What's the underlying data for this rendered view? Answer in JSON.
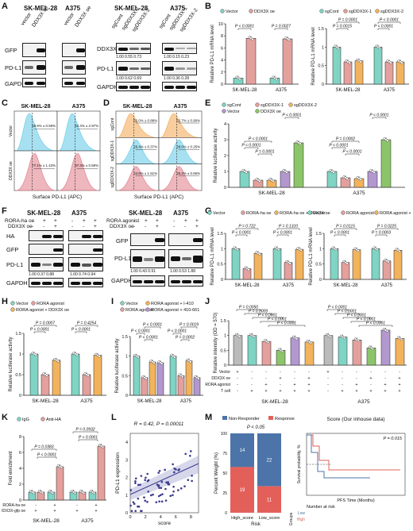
{
  "panels": [
    "A",
    "B",
    "C",
    "D",
    "E",
    "F",
    "G",
    "H",
    "I",
    "J",
    "K",
    "L",
    "M"
  ],
  "A": {
    "cells": [
      "SK-MEL-28",
      "A375"
    ],
    "lanes": [
      "vector",
      "DDX3X oe",
      "vector",
      "DDX3X oe"
    ],
    "right_cells": [
      "SK-MEL-28",
      "A375"
    ],
    "right_lanes": [
      "sgCont",
      "sgDDX3X-1",
      "sgDDX3X-2",
      "sgCont",
      "sgDDX3X-1",
      "sgDDX3X-2"
    ],
    "blots_left": [
      "GFP",
      "PD-L1",
      "GAPDH"
    ],
    "blots_right": [
      "DDX3X",
      "PD-L1",
      "GAPDH"
    ],
    "ddx3x_quant": [
      "1.00",
      "0.55",
      "0.73",
      "1.00",
      "0.15",
      "0.23"
    ],
    "pdl1_quant": [
      "1.00",
      "0.62",
      "0.69",
      "1.00",
      "0.36",
      "0.28"
    ]
  },
  "B": {
    "legend1": [
      "Vector",
      "DDX3X oe"
    ],
    "legend2": [
      "sgCont",
      "sgDDX3X-1",
      "sgDDX3X-2"
    ],
    "ylabel": "Relative PD-L1 mRNA level",
    "p_left": [
      "P < 0.0001",
      "P = 0.0027"
    ],
    "p_right": [
      "P = 0.0015",
      "P = 0.0001",
      "P < 0.0001",
      "P < 0.0001"
    ],
    "groups": [
      "SK-MEL-28",
      "A375"
    ]
  },
  "C": {
    "cells": [
      "SK-MEL-28",
      "A375"
    ],
    "rows": [
      "Vector",
      "DDX3X oe"
    ],
    "pct": [
      "50.6% ± 0.59%",
      "42.4% ± 2.97%",
      "77.1% ± 1.43%",
      "97.3% ± 0.59%"
    ],
    "xlabel": "Surface PD-L1 (APC)"
  },
  "D": {
    "cells": [
      "SK-MEL-28",
      "A375"
    ],
    "rows": [
      "sgCont",
      "sgDDX3X-1",
      "sgDDX3X-2"
    ],
    "pct": [
      "52.0% ± 0.88%",
      "52.7% ± 0.90%",
      "25.4% ± 0.37%",
      "28.0% ± 0.25%",
      "24.6% ± 1.61%",
      "26.2% ± 0.65%"
    ],
    "xlabel": "Surface PD-L1 (APC)"
  },
  "E": {
    "legend": [
      "sgCont",
      "sgDDX3X-1",
      "sgDDX3X-2",
      "Vector",
      "DDX3X oe"
    ],
    "ylabel": "Relative luciferase activity",
    "p": [
      "P < 0.0001",
      "P < 0.0001",
      "P = 0.0001",
      "P < 0.0001",
      "P < 0.0001",
      "P = 0.0002",
      "P < 0.0001",
      "P < 0.0001"
    ],
    "groups": [
      "SK-MEL-28",
      "A375"
    ]
  },
  "F": {
    "cells": [
      "SK-MEL-28",
      "A375"
    ],
    "rows_left": [
      "RORA-ha oe",
      "DDX3X oe"
    ],
    "signs_left": [
      [
        "-",
        "+",
        "+",
        "-",
        "+",
        "+"
      ],
      [
        "-",
        "-",
        "+",
        "-",
        "-",
        "+"
      ]
    ],
    "blots_left": [
      "HA",
      "GFP",
      "PD-L1",
      "GAPDH"
    ],
    "quant_left": [
      "1.00",
      "0.37",
      "0.88",
      "1.00",
      "0.74",
      "0.94"
    ],
    "rows_right": [
      "RORA agonist",
      "DDX3X oe"
    ],
    "signs_right": [
      [
        "-",
        "+",
        "+",
        "-",
        "+",
        "+"
      ],
      [
        "-",
        "-",
        "+",
        "-",
        "-",
        "+"
      ]
    ],
    "blots_right": [
      "GFP",
      "PD-L1",
      "GAPDH"
    ],
    "quant_right": [
      "1.00",
      "0.43",
      "0.91",
      "1.00",
      "0.53",
      "1.88"
    ]
  },
  "G": {
    "legend": [
      "Vector",
      "RORA-ha oe",
      "RORA-ha oe + DDX3X oe",
      "Vector",
      "RORA agonist",
      "RORA agonist + DDX3X oe"
    ],
    "ylabel": "Relative PD-L1 mRNA level",
    "p_left": [
      "P = 0.722",
      "P = 0.1310",
      "P < 0.0001",
      "P < 0.0001"
    ],
    "p_right": [
      "P = 0.0115",
      "P = 0.0225",
      "P < 0.0001",
      "P = 0.0003"
    ],
    "groups": [
      "SK-MEL-28",
      "A375"
    ]
  },
  "H": {
    "legend": [
      "Vector",
      "RORA agonist",
      "RORA agonist + DDX3X oe"
    ],
    "ylabel": "Relative luciferase activity",
    "p": [
      "P = 0.0007",
      "P = 0.4254",
      "P < 0.0001",
      "P < 0.0001"
    ],
    "groups": [
      "SK-MEL-28",
      "A375"
    ]
  },
  "I": {
    "legend": [
      "Vector",
      "RORA agonist",
      "RORA agonist + I-410",
      "RORA agonist + 410-661"
    ],
    "ylabel": "Relative luciferase activity",
    "p": [
      "P < 0.0001",
      "P < 0.0001",
      "P < 0.0001",
      "P < 0.0001",
      "P = 0.0002",
      "P = 0.0019"
    ],
    "groups": [
      "SK-MEL-28",
      "A375"
    ]
  },
  "J": {
    "ylabel": "Relative intensity (OD = 570)",
    "p": [
      "P = 0.0050",
      "P = 0.0009",
      "P < 0.0001",
      "P < 0.0001",
      "P < 0.0001",
      "P < 0.0001",
      "P < 0.0001",
      "P < 0.0001",
      "P < 0.0001",
      "P < 0.0001"
    ],
    "rows": [
      "Vector",
      "DDX3X oe",
      "RORA agonist",
      "T cell"
    ],
    "groups": [
      "SK-MEL-28",
      "A375"
    ]
  },
  "K": {
    "legend": [
      "IgG",
      "Anti-HA"
    ],
    "ylabel": "Fold enrichment",
    "p": [
      "P = 0.0383",
      "P = 0.0932",
      "P < 0.0001",
      "P < 0.0001"
    ],
    "rows": [
      "RORA-ha oe",
      "DDX3X-gfp oe"
    ],
    "groups": [
      "SK-MEL-28",
      "A375"
    ]
  },
  "L": {
    "title": "R = 0.42, P = 0.00011",
    "xlabel": "score",
    "ylabel": "PD-L1 expression"
  },
  "M": {
    "legend": [
      "Non-Responder",
      "Response"
    ],
    "p_left": "P < 0.05",
    "ylabel": "Percent Weight (%)",
    "xlabel": "Risk",
    "bars": [
      "High_score",
      "Low_score"
    ],
    "counts": [
      "14",
      "19",
      "22",
      "11"
    ],
    "km_title": "Score (Our inhouse data)",
    "km_p": "P = 0.015",
    "km_ylabel": "Survival probability, %",
    "km_xlabel": "PFS Time (Months)",
    "risk_label": "Number at risk",
    "groups_label": "Groups",
    "risk_rows": [
      "Low",
      "High"
    ]
  },
  "chart_data": [
    {
      "panel": "B-left",
      "type": "bar",
      "categories": [
        "SK-MEL-28",
        "A375"
      ],
      "series": [
        {
          "name": "Vector",
          "values": [
            1.0,
            1.0
          ]
        },
        {
          "name": "DDX3X oe",
          "values": [
            7.6,
            7.5
          ]
        }
      ],
      "ylim": [
        0,
        10
      ],
      "ylabel": "Relative PD-L1 mRNA level"
    },
    {
      "panel": "B-right",
      "type": "bar",
      "categories": [
        "SK-MEL-28",
        "A375"
      ],
      "series": [
        {
          "name": "sgCont",
          "values": [
            1.0,
            1.0
          ]
        },
        {
          "name": "sgDDX3X-1",
          "values": [
            0.6,
            0.6
          ]
        },
        {
          "name": "sgDDX3X-2",
          "values": [
            0.63,
            0.6
          ]
        }
      ],
      "ylim": [
        0,
        1.5
      ],
      "ylabel": "Relative PD-L1 mRNA level"
    },
    {
      "panel": "E",
      "type": "bar",
      "categories": [
        "SK-MEL-28",
        "A375"
      ],
      "series": [
        {
          "name": "sgCont",
          "values": [
            1.0,
            1.0
          ]
        },
        {
          "name": "sgDDX3X-1",
          "values": [
            0.45,
            0.6
          ]
        },
        {
          "name": "sgDDX3X-2",
          "values": [
            0.45,
            0.55
          ]
        },
        {
          "name": "Vector",
          "values": [
            1.0,
            1.0
          ]
        },
        {
          "name": "DDX3X oe",
          "values": [
            2.8,
            3.0
          ]
        }
      ],
      "ylim": [
        0,
        4
      ],
      "ylabel": "Relative luciferase activity"
    },
    {
      "panel": "H",
      "type": "bar",
      "categories": [
        "SK-MEL-28",
        "A375"
      ],
      "series": [
        {
          "name": "Vector",
          "values": [
            1.0,
            1.0
          ]
        },
        {
          "name": "RORA agonist",
          "values": [
            0.5,
            0.5
          ]
        },
        {
          "name": "RORA agonist + DDX3X oe",
          "values": [
            0.85,
            0.97
          ]
        }
      ],
      "ylim": [
        0,
        1.5
      ],
      "ylabel": "Relative luciferase activity"
    },
    {
      "panel": "I",
      "type": "bar",
      "categories": [
        "SK-MEL-28",
        "A375"
      ],
      "series": [
        {
          "name": "Vector",
          "values": [
            1.0,
            1.0
          ]
        },
        {
          "name": "RORA agonist",
          "values": [
            0.45,
            0.5
          ]
        },
        {
          "name": "RORA agonist + I-410",
          "values": [
            0.85,
            0.88
          ]
        },
        {
          "name": "RORA agonist + 410-661",
          "values": [
            0.83,
            0.45
          ]
        }
      ],
      "ylim": [
        0,
        1.5
      ],
      "ylabel": "Relative luciferase activity"
    },
    {
      "panel": "K",
      "type": "bar",
      "categories": [
        "SK-MEL-28 -",
        "SK-MEL-28 +",
        "A375 -",
        "A375 +"
      ],
      "series": [
        {
          "name": "IgG",
          "values": [
            1.0,
            1.0,
            1.0,
            1.0
          ]
        },
        {
          "name": "Anti-HA",
          "values": [
            1.0,
            4.2,
            1.0,
            6.8
          ]
        }
      ],
      "ylim": [
        0,
        8
      ],
      "ylabel": "Fold enrichment"
    }
  ]
}
